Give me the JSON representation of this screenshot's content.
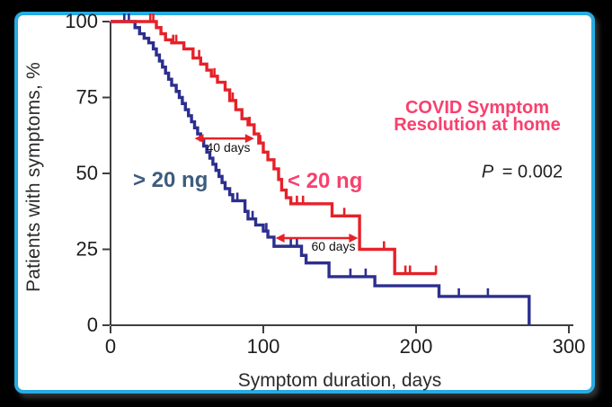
{
  "frame": {
    "background_color": "#000000",
    "panel_border_color": "#29abe2",
    "panel_background": "#ffffff"
  },
  "chart_data": {
    "type": "line",
    "subtype": "kaplan-meier-step-survival",
    "title_lines": [
      "COVID Symptom",
      "Resolution at home"
    ],
    "title_color": "#f8406e",
    "p_label": "P",
    "p_value": "= 0.002",
    "xlabel": "Symptom duration, days",
    "ylabel": "Patients with symptoms, %",
    "xlim": [
      0,
      300
    ],
    "ylim": [
      0,
      100
    ],
    "x_ticks": [
      0,
      100,
      200,
      300
    ],
    "y_ticks": [
      0,
      25,
      50,
      75,
      100
    ],
    "grid": false,
    "axis_color": "#3f3f3f",
    "tick_label_color": "#1d1d1d",
    "series": [
      {
        "name": "> 20 ng",
        "color": "#2c2f8e",
        "label_color": "#3e5c7e",
        "steps": [
          [
            0,
            100
          ],
          [
            16,
            98
          ],
          [
            19,
            96
          ],
          [
            22,
            94.5
          ],
          [
            25,
            93
          ],
          [
            28,
            91
          ],
          [
            30,
            89
          ],
          [
            32,
            87
          ],
          [
            34,
            85
          ],
          [
            36,
            83
          ],
          [
            38,
            81
          ],
          [
            40,
            79
          ],
          [
            43,
            77
          ],
          [
            45,
            75
          ],
          [
            47,
            73
          ],
          [
            49,
            71
          ],
          [
            51,
            69
          ],
          [
            53,
            67
          ],
          [
            55,
            65
          ],
          [
            57,
            63
          ],
          [
            59,
            61
          ],
          [
            61,
            59
          ],
          [
            63,
            57
          ],
          [
            65,
            55
          ],
          [
            67,
            53
          ],
          [
            69,
            51
          ],
          [
            71,
            49
          ],
          [
            73,
            47
          ],
          [
            75,
            45
          ],
          [
            78,
            43
          ],
          [
            80,
            41
          ],
          [
            88,
            37.5
          ],
          [
            90,
            35
          ],
          [
            95,
            33
          ],
          [
            100,
            31
          ],
          [
            103,
            29
          ],
          [
            107,
            26
          ],
          [
            125,
            23
          ],
          [
            128,
            20.5
          ],
          [
            143,
            16
          ],
          [
            173,
            13
          ],
          [
            215,
            9.5
          ]
        ],
        "censor_days": [
          9,
          12,
          83,
          93,
          102,
          118,
          122,
          157,
          167,
          228,
          247
        ],
        "drops_to_zero_at_day": 274,
        "end_tick": false
      },
      {
        "name": "< 20 ng",
        "color": "#e62129",
        "label_color": "#f8406e",
        "steps": [
          [
            0,
            100
          ],
          [
            30,
            98
          ],
          [
            33,
            96
          ],
          [
            36,
            94
          ],
          [
            40,
            93
          ],
          [
            48,
            91
          ],
          [
            54,
            88
          ],
          [
            59,
            86
          ],
          [
            63,
            84
          ],
          [
            66,
            82
          ],
          [
            70,
            80
          ],
          [
            75,
            77.5
          ],
          [
            78,
            74
          ],
          [
            82,
            71
          ],
          [
            86,
            68
          ],
          [
            90,
            66
          ],
          [
            94,
            63
          ],
          [
            97,
            60
          ],
          [
            100,
            57
          ],
          [
            103,
            54.5
          ],
          [
            107,
            51.5
          ],
          [
            110,
            48
          ],
          [
            112,
            44.5
          ],
          [
            115,
            42
          ],
          [
            118,
            40
          ],
          [
            145,
            36
          ],
          [
            163,
            25
          ],
          [
            186,
            17
          ]
        ],
        "censor_days": [
          26,
          28,
          41,
          43,
          58,
          68,
          80,
          91,
          98,
          103,
          122,
          126,
          153,
          179,
          193,
          196
        ],
        "end_day": 213,
        "end_tick": true
      }
    ],
    "annotations": [
      {
        "text": "40 days",
        "type": "double-arrow",
        "from_day": 55,
        "to_day": 94,
        "at_pct": 61.5,
        "color": "#e62129"
      },
      {
        "text": "60 days",
        "type": "double-arrow",
        "from_day": 108,
        "to_day": 162,
        "at_pct": 28.7,
        "color": "#e62129"
      }
    ]
  }
}
